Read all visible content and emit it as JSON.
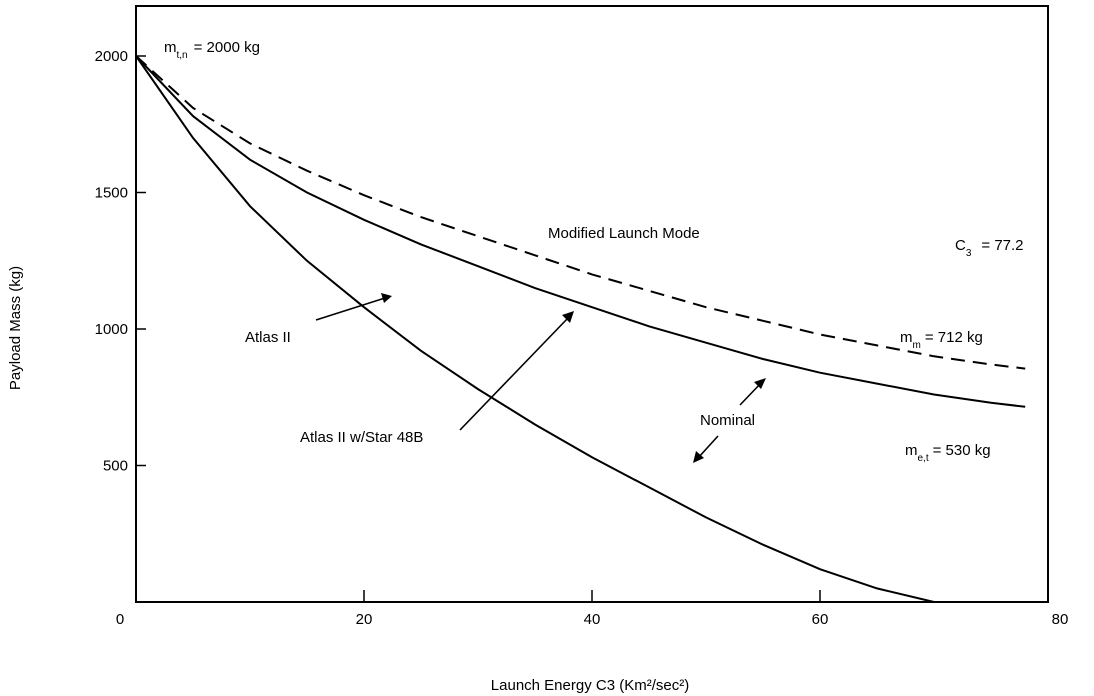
{
  "chart_data": {
    "type": "line",
    "xlabel": "Launch Energy C3 (Km²/sec²)",
    "ylabel": "Payload Mass (kg)",
    "xlim": [
      0,
      80
    ],
    "ylim": [
      0,
      2000
    ],
    "x_ticks": [
      0,
      20,
      40,
      60,
      80
    ],
    "x_tick_labels": [
      "0",
      "20",
      "40",
      "60",
      "80"
    ],
    "y_ticks": [
      500,
      1000,
      1500,
      2000
    ],
    "y_tick_labels": [
      "500",
      "1000",
      "1500",
      "2000"
    ],
    "grid": false,
    "legend": "none",
    "series": [
      {
        "style": "dashed",
        "x": [
          0,
          5,
          10,
          15,
          20,
          25,
          30,
          35,
          40,
          45,
          50,
          55,
          60,
          65,
          70,
          75,
          78
        ],
        "y": [
          2000,
          1810,
          1680,
          1580,
          1490,
          1410,
          1340,
          1270,
          1200,
          1140,
          1080,
          1030,
          980,
          940,
          900,
          870,
          855
        ]
      },
      {
        "style": "solid",
        "x": [
          0,
          5,
          10,
          15,
          20,
          25,
          30,
          35,
          40,
          45,
          50,
          55,
          60,
          65,
          70,
          75,
          78
        ],
        "y": [
          2000,
          1780,
          1620,
          1500,
          1400,
          1310,
          1230,
          1150,
          1080,
          1010,
          950,
          890,
          840,
          800,
          760,
          730,
          715
        ]
      },
      {
        "style": "solid",
        "x": [
          0,
          5,
          10,
          15,
          20,
          25,
          30,
          35,
          40,
          45,
          50,
          55,
          60,
          65,
          70,
          72
        ],
        "y": [
          2000,
          1700,
          1450,
          1250,
          1080,
          920,
          780,
          650,
          530,
          420,
          310,
          210,
          120,
          50,
          0,
          -20
        ]
      }
    ],
    "annotations": {
      "m_top": "m",
      "m_top_sub": "t,n",
      "m_top_value": "= 2000 kg",
      "modified_mode": "Modified Launch Mode",
      "c3_label": "C",
      "c3_sub": "3",
      "c3_value": "= 77.2",
      "m_mid": "m",
      "m_mid_sub": "m",
      "m_mid_value": "= 712 kg",
      "m_low": "m",
      "m_low_sub": "e,t",
      "m_low_value": "= 530 kg",
      "atlas2": "Atlas II",
      "atlas2_star": "Atlas II w/Star 48B",
      "nominal": "Nominal"
    }
  }
}
